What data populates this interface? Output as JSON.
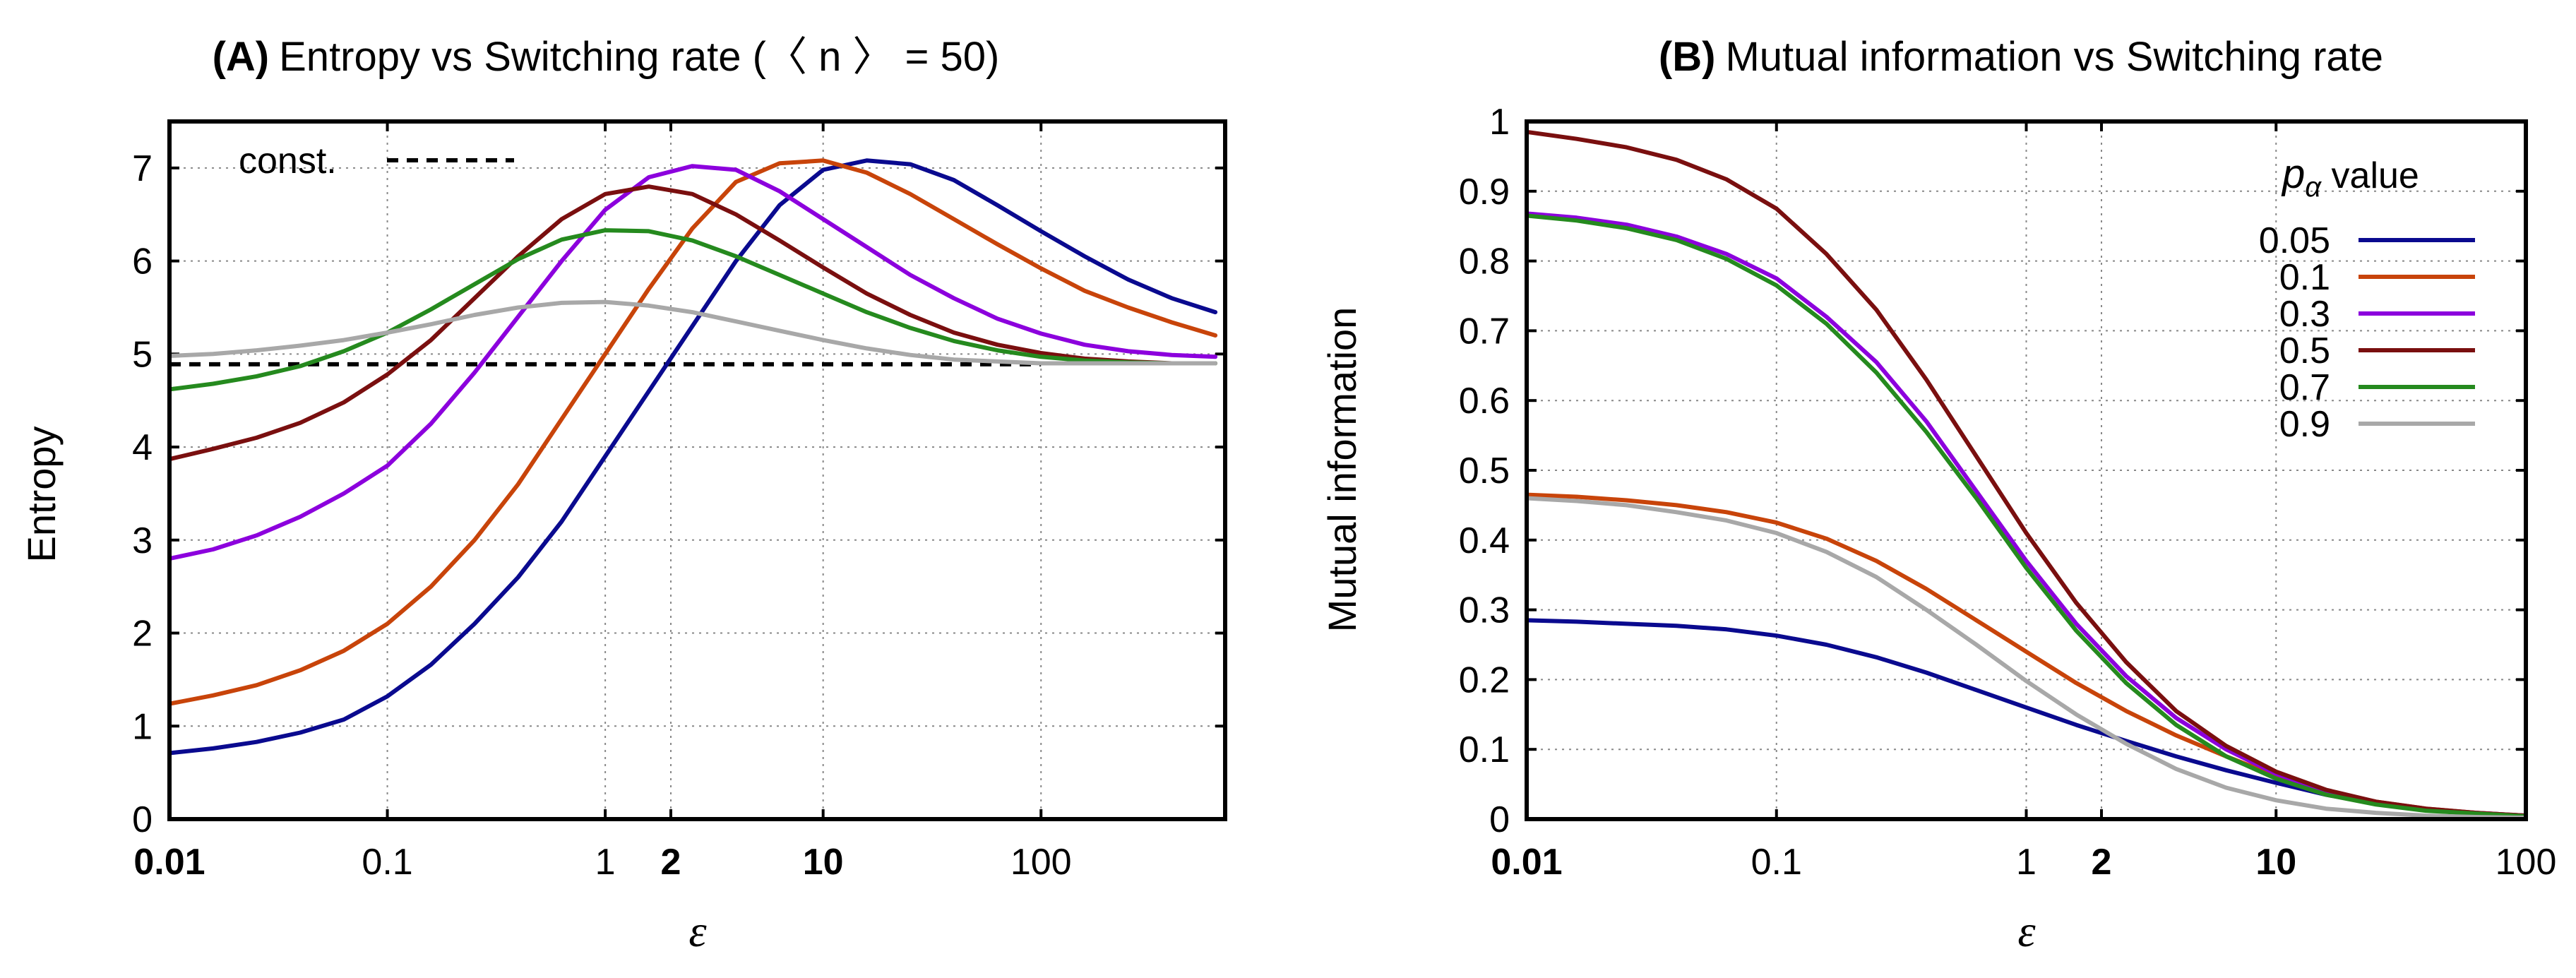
{
  "chart_data": [
    {
      "type": "line",
      "panel": "A",
      "title_bold": "(A)",
      "title_text": "Entropy vs Switching rate (〈 n 〉 = 50)",
      "xlabel": "ε",
      "ylabel": "Entropy",
      "x_scale": "log",
      "xlim": [
        0.01,
        700
      ],
      "ylim": [
        0,
        7.5
      ],
      "grid": true,
      "xticks": [
        {
          "value": 0.01,
          "label": "0.01",
          "bold": true
        },
        {
          "value": 0.1,
          "label": "0.1",
          "bold": false
        },
        {
          "value": 1,
          "label": "1",
          "bold": false
        },
        {
          "value": 2,
          "label": "2",
          "bold": true
        },
        {
          "value": 10,
          "label": "10",
          "bold": true
        },
        {
          "value": 100,
          "label": "100",
          "bold": false
        }
      ],
      "yticks": [
        0,
        1,
        2,
        3,
        4,
        5,
        6,
        7
      ],
      "x": [
        0.01,
        0.01585,
        0.02512,
        0.03981,
        0.0631,
        0.1,
        0.1585,
        0.2512,
        0.3981,
        0.631,
        1,
        1.585,
        2.512,
        3.981,
        6.31,
        10,
        15.85,
        25.12,
        39.81,
        63.1,
        100,
        158.5,
        251.2,
        398.1,
        631
      ],
      "series": [
        {
          "name": "0.05",
          "color": "#0a0a8f",
          "values": [
            0.71,
            0.76,
            0.83,
            0.93,
            1.07,
            1.32,
            1.66,
            2.1,
            2.6,
            3.2,
            3.9,
            4.6,
            5.3,
            6.0,
            6.6,
            6.98,
            7.08,
            7.04,
            6.87,
            6.6,
            6.32,
            6.05,
            5.8,
            5.6,
            5.45
          ]
        },
        {
          "name": "0.1",
          "color": "#c8440a",
          "values": [
            1.24,
            1.33,
            1.44,
            1.6,
            1.81,
            2.1,
            2.5,
            3.0,
            3.6,
            4.3,
            5.0,
            5.7,
            6.35,
            6.85,
            7.05,
            7.08,
            6.95,
            6.72,
            6.45,
            6.18,
            5.92,
            5.68,
            5.5,
            5.34,
            5.2
          ]
        },
        {
          "name": "0.3",
          "color": "#8c00dd",
          "values": [
            2.8,
            2.9,
            3.05,
            3.25,
            3.5,
            3.8,
            4.25,
            4.8,
            5.4,
            6.0,
            6.55,
            6.9,
            7.02,
            6.98,
            6.75,
            6.45,
            6.15,
            5.85,
            5.6,
            5.38,
            5.22,
            5.1,
            5.03,
            4.99,
            4.97
          ]
        },
        {
          "name": "0.5",
          "color": "#7a0f0f",
          "values": [
            3.87,
            3.98,
            4.1,
            4.26,
            4.48,
            4.78,
            5.15,
            5.6,
            6.05,
            6.45,
            6.72,
            6.8,
            6.72,
            6.5,
            6.22,
            5.93,
            5.65,
            5.42,
            5.23,
            5.1,
            5.01,
            4.95,
            4.92,
            4.9,
            4.9
          ]
        },
        {
          "name": "0.7",
          "color": "#258a1e",
          "values": [
            4.62,
            4.68,
            4.76,
            4.87,
            5.03,
            5.23,
            5.48,
            5.75,
            6.02,
            6.23,
            6.33,
            6.32,
            6.22,
            6.05,
            5.85,
            5.65,
            5.45,
            5.28,
            5.14,
            5.04,
            4.97,
            4.93,
            4.91,
            4.9,
            4.9
          ]
        },
        {
          "name": "0.9",
          "color": "#a8a8a8",
          "values": [
            4.98,
            5.0,
            5.04,
            5.09,
            5.15,
            5.23,
            5.32,
            5.42,
            5.5,
            5.55,
            5.56,
            5.52,
            5.45,
            5.35,
            5.25,
            5.15,
            5.06,
            4.99,
            4.94,
            4.92,
            4.9,
            4.9,
            4.9,
            4.9,
            4.9
          ]
        }
      ],
      "reference_line": {
        "label": "const.",
        "value": 4.89,
        "style": "dashed",
        "color": "#000000"
      }
    },
    {
      "type": "line",
      "panel": "B",
      "title_bold": "(B)",
      "title_text": "Mutual information vs Switching rate",
      "xlabel": "ε",
      "ylabel": "Mutual information",
      "x_scale": "log",
      "xlim": [
        0.01,
        100
      ],
      "ylim": [
        0,
        1
      ],
      "grid": true,
      "xticks": [
        {
          "value": 0.01,
          "label": "0.01",
          "bold": true
        },
        {
          "value": 0.1,
          "label": "0.1",
          "bold": false
        },
        {
          "value": 1,
          "label": "1",
          "bold": false
        },
        {
          "value": 2,
          "label": "2",
          "bold": true
        },
        {
          "value": 10,
          "label": "10",
          "bold": true
        },
        {
          "value": 100,
          "label": "100",
          "bold": false
        }
      ],
      "yticks": [
        "0",
        "0.1",
        "0.2",
        "0.3",
        "0.4",
        "0.5",
        "0.6",
        "0.7",
        "0.8",
        "0.9",
        "1"
      ],
      "legend_title": "pα value",
      "legend_title_main": "p",
      "legend_title_sub": "α",
      "legend_title_rest": " value",
      "legend_position": "top-right",
      "x": [
        0.01,
        0.01585,
        0.02512,
        0.03981,
        0.0631,
        0.1,
        0.1585,
        0.2512,
        0.3981,
        0.631,
        1,
        1.585,
        2.512,
        3.981,
        6.31,
        10,
        15.85,
        25.12,
        39.81,
        63.1,
        100
      ],
      "series": [
        {
          "name": "0.05",
          "color": "#0a0a8f",
          "values": [
            0.285,
            0.283,
            0.28,
            0.277,
            0.272,
            0.263,
            0.25,
            0.232,
            0.21,
            0.185,
            0.16,
            0.135,
            0.112,
            0.09,
            0.07,
            0.052,
            0.035,
            0.022,
            0.013,
            0.008,
            0.005
          ]
        },
        {
          "name": "0.1",
          "color": "#c8440a",
          "values": [
            0.465,
            0.462,
            0.457,
            0.45,
            0.44,
            0.425,
            0.402,
            0.37,
            0.33,
            0.285,
            0.24,
            0.195,
            0.155,
            0.12,
            0.09,
            0.062,
            0.04,
            0.025,
            0.015,
            0.009,
            0.005
          ]
        },
        {
          "name": "0.3",
          "color": "#8c00dd",
          "values": [
            0.868,
            0.862,
            0.852,
            0.835,
            0.81,
            0.775,
            0.72,
            0.655,
            0.57,
            0.47,
            0.37,
            0.28,
            0.205,
            0.145,
            0.1,
            0.065,
            0.04,
            0.024,
            0.014,
            0.009,
            0.005
          ]
        },
        {
          "name": "0.5",
          "color": "#7a0f0f",
          "values": [
            0.985,
            0.975,
            0.963,
            0.945,
            0.917,
            0.875,
            0.81,
            0.73,
            0.63,
            0.52,
            0.41,
            0.31,
            0.225,
            0.155,
            0.105,
            0.068,
            0.042,
            0.025,
            0.015,
            0.009,
            0.005
          ]
        },
        {
          "name": "0.7",
          "color": "#258a1e",
          "values": [
            0.865,
            0.858,
            0.847,
            0.83,
            0.803,
            0.765,
            0.71,
            0.64,
            0.555,
            0.46,
            0.36,
            0.27,
            0.195,
            0.135,
            0.09,
            0.058,
            0.035,
            0.021,
            0.012,
            0.008,
            0.004
          ]
        },
        {
          "name": "0.9",
          "color": "#a8a8a8",
          "values": [
            0.46,
            0.456,
            0.45,
            0.44,
            0.428,
            0.41,
            0.383,
            0.347,
            0.3,
            0.25,
            0.198,
            0.15,
            0.108,
            0.072,
            0.045,
            0.027,
            0.015,
            0.009,
            0.005,
            0.003,
            0.002
          ]
        }
      ]
    }
  ]
}
